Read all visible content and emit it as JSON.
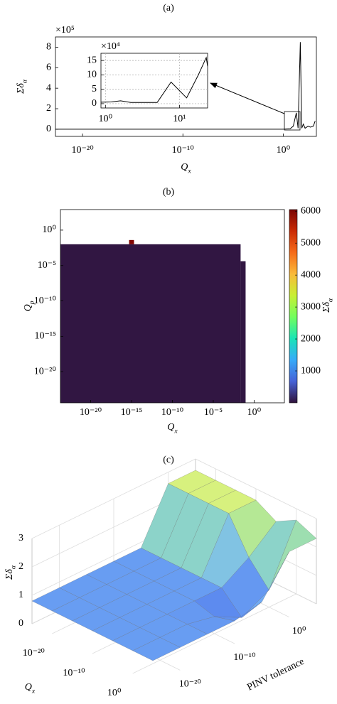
{
  "chart_data": [
    {
      "type": "line",
      "title": "(a)",
      "xlabel": {
        "main": "Q",
        "sub": "x"
      },
      "ylabel": {
        "main": "Σδ",
        "sub": "α"
      },
      "y_multiplier": "×10⁵",
      "xscale": "log",
      "xlim": [
        2e-23,
        2000
      ],
      "ylim": [
        -0.7,
        9
      ],
      "xticks": [
        {
          "value": 1e-20,
          "label": "10⁻²⁰"
        },
        {
          "value": 1e-10,
          "label": "10⁻¹⁰"
        },
        {
          "value": 1,
          "label": "10⁰"
        }
      ],
      "yticks": [
        0,
        2,
        4,
        6,
        8
      ],
      "grid": false,
      "color": "#000000",
      "x": [
        2e-23,
        1,
        5,
        10,
        20,
        30,
        50,
        70,
        100,
        150,
        300,
        500,
        1000,
        1500
      ],
      "values": [
        0,
        0,
        0.05,
        0.3,
        1.6,
        0.1,
        8.5,
        0.1,
        0.5,
        0.1,
        0.3,
        0.2,
        0.3,
        0.8
      ],
      "inset": {
        "type": "line",
        "y_multiplier": "×10⁴",
        "xscale": "log",
        "xlim": [
          0.87,
          24
        ],
        "ylim": [
          -1.5,
          17.5
        ],
        "xticks": [
          {
            "value": 1,
            "label": "10⁰"
          },
          {
            "value": 10,
            "label": "10¹"
          }
        ],
        "yticks": [
          0,
          5,
          10,
          15
        ],
        "grid": true,
        "color": "#000000",
        "x": [
          0.87,
          1.2,
          1.6,
          2.2,
          3,
          5,
          7.7,
          12.5,
          18,
          23,
          24
        ],
        "values": [
          0.5,
          0.6,
          1,
          0.4,
          0.4,
          0.4,
          7.5,
          2,
          10,
          16,
          13
        ]
      }
    },
    {
      "type": "heatmap",
      "title": "(b)",
      "xlabel": {
        "main": "Q",
        "sub": "x"
      },
      "ylabel": {
        "main": "Q",
        "sub": "p"
      },
      "colorbar_label": {
        "main": "Σδ",
        "sub": "α"
      },
      "xscale": "log",
      "yscale": "log",
      "xlim": [
        2e-24,
        5000
      ],
      "ylim": [
        4e-25,
        800
      ],
      "xticks": [
        {
          "value": 1e-20,
          "label": "10⁻²⁰"
        },
        {
          "value": 1e-15,
          "label": "10⁻¹⁵"
        },
        {
          "value": 1e-10,
          "label": "10⁻¹⁰"
        },
        {
          "value": 1e-05,
          "label": "10⁻⁵"
        },
        {
          "value": 1,
          "label": "10⁰"
        }
      ],
      "yticks": [
        {
          "value": 1e-20,
          "label": "10⁻²⁰"
        },
        {
          "value": 1e-15,
          "label": "10⁻¹⁵"
        },
        {
          "value": 1e-10,
          "label": "10⁻¹⁰"
        },
        {
          "value": 1e-05,
          "label": "10⁻⁵"
        },
        {
          "value": 1,
          "label": "10⁰"
        }
      ],
      "clim": [
        0,
        6050
      ],
      "cticks": [
        1000,
        2000,
        3000,
        4000,
        5000,
        6000
      ],
      "colormap": [
        "#30123b",
        "#4662d7",
        "#36aaf9",
        "#1ae4b6",
        "#72fe5e",
        "#c8ef34",
        "#faba39",
        "#f66b19",
        "#ca2a04",
        "#7a0403"
      ],
      "cells": [
        {
          "x": [
            2e-24,
            0.022
          ],
          "y": [
            4e-25,
            0.01
          ],
          "value": 30
        },
        {
          "x": [
            0.022,
            0.09
          ],
          "y": [
            4e-25,
            4e-05
          ],
          "value": 30
        },
        {
          "x": [
            5e-16,
            2e-15
          ],
          "y": [
            0.01,
            0.04
          ],
          "value": 6000
        }
      ]
    },
    {
      "type": "surface",
      "title": "(c)",
      "xlabel": {
        "main": "Q",
        "sub": "x"
      },
      "ylabel": "PINV tolerance",
      "zlabel": {
        "main": "Σδ",
        "sub": "α"
      },
      "xscale": "log",
      "yscale": "log",
      "xlim": [
        1e-25,
        100000
      ],
      "ylim": [
        1e-25,
        100000
      ],
      "zlim": [
        0,
        3
      ],
      "xticks": [
        {
          "value": 1e-20,
          "label": "10⁻²⁰"
        },
        {
          "value": 1e-10,
          "label": "10⁻¹⁰"
        },
        {
          "value": 1,
          "label": "10⁰"
        }
      ],
      "yticks": [
        {
          "value": 1e-20,
          "label": "10⁻²⁰"
        },
        {
          "value": 1e-10,
          "label": "10⁻¹⁰"
        },
        {
          "value": 1,
          "label": "10⁰"
        }
      ],
      "zticks": [
        0,
        1,
        2,
        3
      ],
      "grid": true,
      "clim": [
        0,
        3
      ],
      "colormap": [
        "#3333cc",
        "#5f8ff0",
        "#7ab8f5",
        "#8fd8c0",
        "#c8f080",
        "#f6f47a"
      ],
      "x": [
        1e-25,
        1e-20,
        1e-15,
        1e-10,
        1e-05,
        1,
        100000
      ],
      "y": [
        1e-25,
        1e-20,
        1e-15,
        1e-10,
        1e-05,
        1,
        100000
      ],
      "z": [
        [
          0.8,
          0.8,
          0.8,
          0.8,
          0.8,
          0.8,
          0.8
        ],
        [
          0.8,
          0.8,
          0.8,
          0.8,
          0.8,
          0.8,
          0.8
        ],
        [
          0.8,
          0.8,
          0.8,
          0.8,
          0.8,
          0.8,
          0.8
        ],
        [
          0.8,
          0.8,
          0.8,
          0.8,
          0.8,
          0.6,
          0.8
        ],
        [
          0.8,
          0.8,
          0.8,
          0.8,
          0.8,
          0.1,
          1.0
        ],
        [
          2.6,
          2.6,
          2.6,
          2.6,
          1.4,
          0.6,
          2.3
        ],
        [
          2.6,
          2.6,
          2.6,
          2.6,
          2.2,
          2.6,
          2.3
        ]
      ]
    }
  ]
}
